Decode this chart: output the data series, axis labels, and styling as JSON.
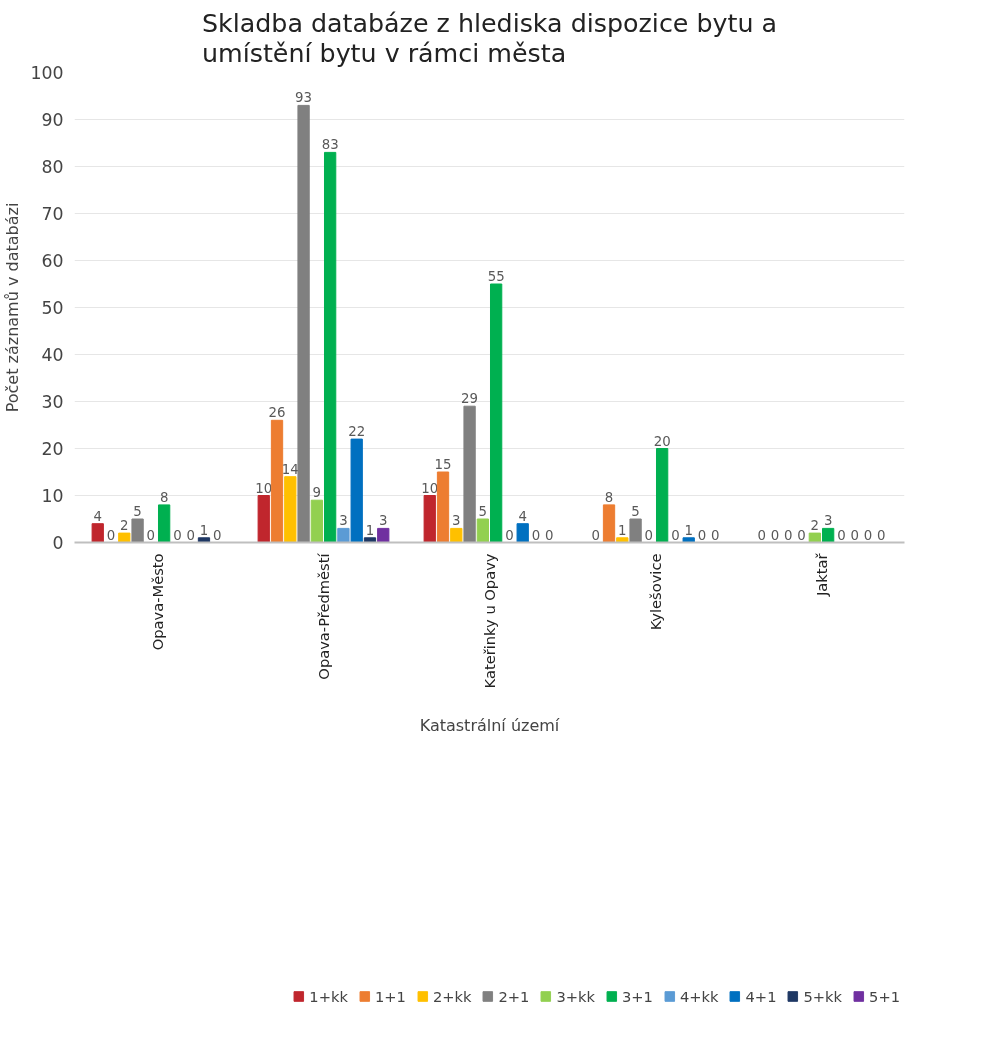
{
  "chart_data": {
    "type": "bar",
    "title": "Skladba databáze z hlediska dispozice bytu a umístění bytu v rámci města",
    "xlabel": "Katastrální území",
    "ylabel": "Počet záznamů v databázi",
    "categories": [
      "Opava-Město",
      "Opava-Předměstí",
      "Kateřinky u Opavy",
      "Kylešovice",
      "Jaktař"
    ],
    "series": [
      {
        "name": "1+kk",
        "color": "#c0262d",
        "values": [
          4,
          10,
          10,
          0,
          0
        ]
      },
      {
        "name": "1+1",
        "color": "#ed7d31",
        "values": [
          0,
          26,
          15,
          8,
          0
        ]
      },
      {
        "name": "2+kk",
        "color": "#ffc000",
        "values": [
          2,
          14,
          3,
          1,
          0
        ]
      },
      {
        "name": "2+1",
        "color": "#808080",
        "values": [
          5,
          93,
          29,
          5,
          0
        ]
      },
      {
        "name": "3+kk",
        "color": "#92d050",
        "values": [
          0,
          9,
          5,
          0,
          2
        ]
      },
      {
        "name": "3+1",
        "color": "#00b050",
        "values": [
          8,
          83,
          55,
          20,
          3
        ]
      },
      {
        "name": "4+kk",
        "color": "#5b9bd5",
        "values": [
          0,
          3,
          0,
          0,
          0
        ]
      },
      {
        "name": "4+1",
        "color": "#0070c0",
        "values": [
          0,
          22,
          4,
          1,
          0
        ]
      },
      {
        "name": "5+kk",
        "color": "#1f3864",
        "values": [
          1,
          1,
          0,
          0,
          0
        ]
      },
      {
        "name": "5+1",
        "color": "#7030a0",
        "values": [
          0,
          3,
          0,
          0,
          0
        ]
      }
    ],
    "ylim": [
      0,
      100
    ],
    "yticks": [
      0,
      10,
      20,
      30,
      40,
      50,
      60,
      70,
      80,
      90,
      100
    ],
    "grid": "y",
    "legend": "bottom",
    "data_labels": true
  }
}
